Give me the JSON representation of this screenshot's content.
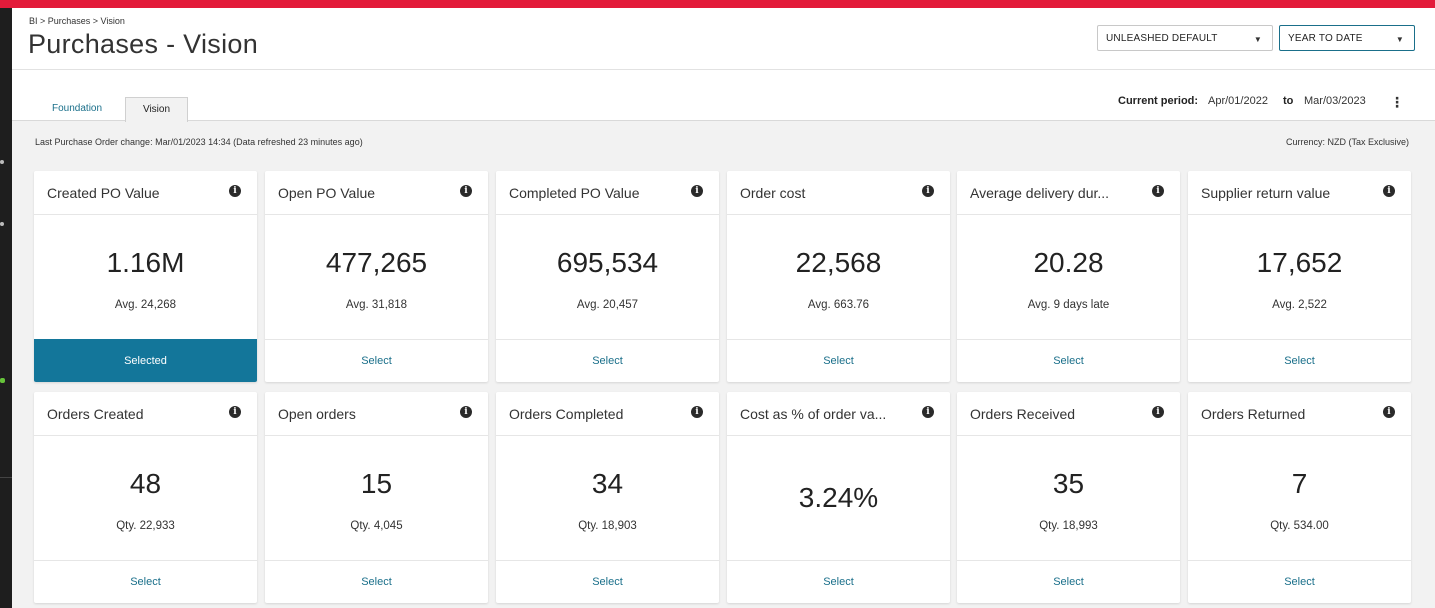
{
  "header": {
    "breadcrumb": "BI > Purchases > Vision",
    "title": "Purchases - Vision",
    "view_select": "UNLEASHED DEFAULT",
    "range_select": "YEAR TO DATE"
  },
  "tabs": [
    {
      "label": "Foundation",
      "active": false
    },
    {
      "label": "Vision",
      "active": true
    }
  ],
  "period": {
    "label": "Current period:",
    "from": "Apr/01/2022",
    "to_word": "to",
    "to": "Mar/03/2023"
  },
  "info": {
    "last_change": "Last Purchase Order change: Mar/01/2023 14:34 (Data refreshed 23 minutes ago)",
    "currency": "Currency:  NZD (Tax Exclusive)"
  },
  "cards": [
    {
      "title": "Created PO Value",
      "value": "1.16M",
      "sub": "Avg. 24,268",
      "action": "Selected",
      "selected": true
    },
    {
      "title": "Open PO Value",
      "value": "477,265",
      "sub": "Avg. 31,818",
      "action": "Select"
    },
    {
      "title": "Completed PO Value",
      "value": "695,534",
      "sub": "Avg. 20,457",
      "action": "Select"
    },
    {
      "title": "Order cost",
      "value": "22,568",
      "sub": "Avg. 663.76",
      "action": "Select"
    },
    {
      "title": "Average delivery dur...",
      "value": "20.28",
      "sub": "Avg. 9 days late",
      "action": "Select"
    },
    {
      "title": "Supplier return value",
      "value": "17,652",
      "sub": "Avg. 2,522",
      "action": "Select"
    },
    {
      "title": "Orders Created",
      "value": "48",
      "sub": "Qty. 22,933",
      "action": "Select"
    },
    {
      "title": "Open orders",
      "value": "15",
      "sub": "Qty. 4,045",
      "action": "Select"
    },
    {
      "title": "Orders Completed",
      "value": "34",
      "sub": "Qty. 18,903",
      "action": "Select"
    },
    {
      "title": "Cost as % of order va...",
      "value": "3.24%",
      "sub": "",
      "action": "Select"
    },
    {
      "title": "Orders Received",
      "value": "35",
      "sub": "Qty. 18,993",
      "action": "Select"
    },
    {
      "title": "Orders Returned",
      "value": "7",
      "sub": "Qty. 534.00",
      "action": "Select"
    }
  ],
  "icons": {
    "info": "info-icon",
    "kebab": "kebab-menu-icon",
    "caret": "caret-down-icon"
  },
  "colors": {
    "brand_red": "#e31b3a",
    "accent": "#13769a",
    "link": "#1a6f8a"
  }
}
